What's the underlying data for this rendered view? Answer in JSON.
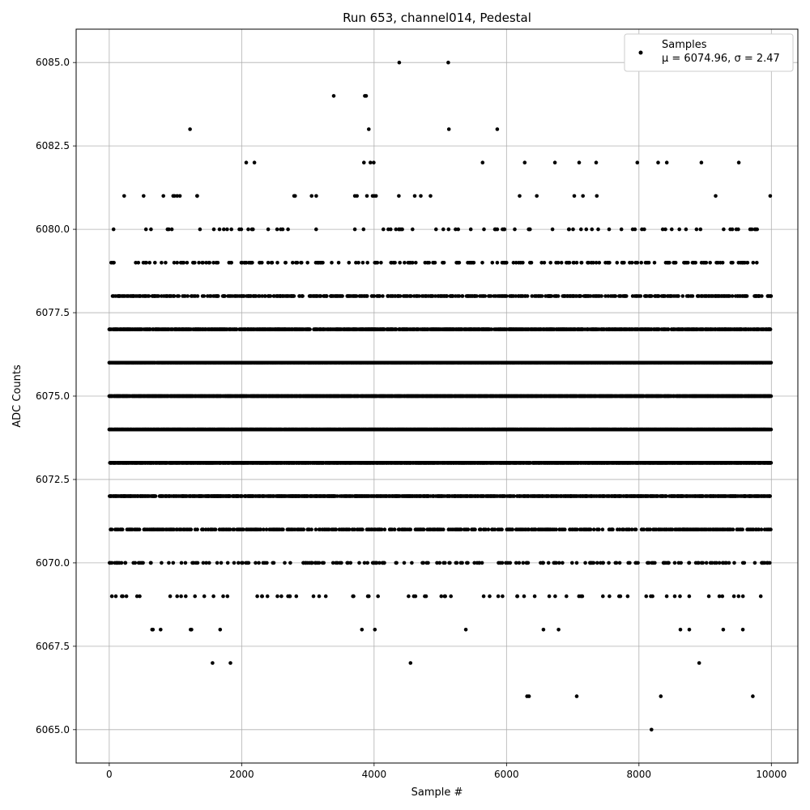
{
  "chart_data": {
    "type": "scatter",
    "title": "Run 653, channel014, Pedestal",
    "xlabel": "Sample #",
    "ylabel": "ADC Counts",
    "xlim": [
      -500,
      10400
    ],
    "ylim": [
      6064,
      6086
    ],
    "xticks": [
      0,
      2000,
      4000,
      6000,
      8000,
      10000
    ],
    "yticks": [
      6065.0,
      6067.5,
      6070.0,
      6072.5,
      6075.0,
      6077.5,
      6080.0,
      6082.5,
      6085.0
    ],
    "x_tick_labels": [
      "0",
      "2000",
      "4000",
      "6000",
      "8000",
      "10000"
    ],
    "y_tick_labels": [
      "6065.0",
      "6067.5",
      "6070.0",
      "6072.5",
      "6075.0",
      "6077.5",
      "6080.0",
      "6082.5",
      "6085.0"
    ],
    "grid": true,
    "legend": {
      "placement": "top-right",
      "series_label": "Samples",
      "stats_label": "μ = 6074.96, σ = 2.47"
    },
    "marker_color": "#000000",
    "sample_count": 10000,
    "level_density": [
      {
        "y": 6065,
        "density": 0.0001
      },
      {
        "y": 6066,
        "density": 0.0005
      },
      {
        "y": 6067,
        "density": 0.0005
      },
      {
        "y": 6068,
        "density": 0.0015
      },
      {
        "y": 6069,
        "density": 0.006
      },
      {
        "y": 6070,
        "density": 0.02
      },
      {
        "y": 6071,
        "density": 0.05
      },
      {
        "y": 6072,
        "density": 0.1
      },
      {
        "y": 6073,
        "density": 0.15
      },
      {
        "y": 6074,
        "density": 0.17
      },
      {
        "y": 6075,
        "density": 0.17
      },
      {
        "y": 6076,
        "density": 0.15
      },
      {
        "y": 6077,
        "density": 0.1
      },
      {
        "y": 6078,
        "density": 0.05
      },
      {
        "y": 6079,
        "density": 0.02
      },
      {
        "y": 6080,
        "density": 0.006
      },
      {
        "y": 6081,
        "density": 0.003
      },
      {
        "y": 6082,
        "density": 0.0015
      },
      {
        "y": 6083,
        "density": 0.0003
      },
      {
        "y": 6084,
        "density": 0.0002
      },
      {
        "y": 6085,
        "density": 0.0002
      }
    ],
    "outliers": [
      {
        "x": 8190,
        "y": 6065
      },
      {
        "x": 6310,
        "y": 6066
      },
      {
        "x": 6340,
        "y": 6066
      },
      {
        "x": 7060,
        "y": 6066
      },
      {
        "x": 8330,
        "y": 6066
      },
      {
        "x": 9720,
        "y": 6066
      },
      {
        "x": 1560,
        "y": 6067
      },
      {
        "x": 1830,
        "y": 6067
      },
      {
        "x": 4550,
        "y": 6067
      },
      {
        "x": 8910,
        "y": 6067
      },
      {
        "x": 1220,
        "y": 6083
      },
      {
        "x": 3920,
        "y": 6083
      },
      {
        "x": 5130,
        "y": 6083
      },
      {
        "x": 5860,
        "y": 6083
      },
      {
        "x": 3390,
        "y": 6084
      },
      {
        "x": 3860,
        "y": 6084
      },
      {
        "x": 3880,
        "y": 6084
      },
      {
        "x": 4380,
        "y": 6085
      },
      {
        "x": 5120,
        "y": 6085
      }
    ]
  }
}
